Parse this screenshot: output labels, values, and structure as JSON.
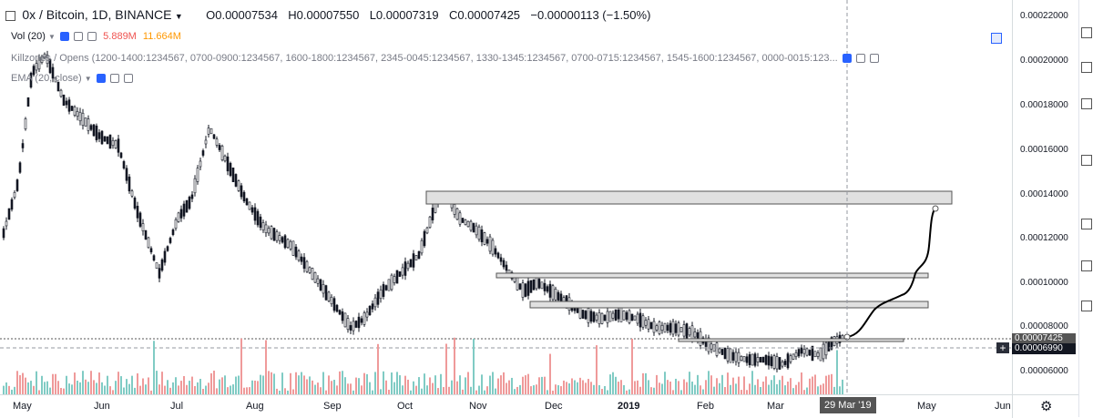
{
  "header": {
    "symbol": "0x / Bitcoin, 1D, BINANCE",
    "open": "O0.00007534",
    "high": "H0.00007550",
    "low": "L0.00007319",
    "close": "C0.00007425",
    "change": "−0.00000113 (−1.50%)"
  },
  "indicators": {
    "vol_label": "Vol (20)",
    "vol_value": "5.889M",
    "vol_ma": "11.664M",
    "killzones": "Killzones / Opens (1200-1400:1234567, 0700-0900:1234567, 1600-1800:1234567, 2345-0045:1234567, 1330-1345:1234567, 0700-0715:1234567, 1545-1600:1234567, 0000-0015:123...",
    "ema": "EMA (20, close)"
  },
  "price_scale": {
    "ticks": [
      "0.00022000",
      "0.00020000",
      "0.00018000",
      "0.00016000",
      "0.00014000",
      "0.00012000",
      "0.00010000",
      "0.00008000",
      "0.00006000"
    ],
    "current_price": "0.00007425",
    "cursor_price": "0.00006990"
  },
  "time_axis": {
    "labels": [
      "May",
      "Jun",
      "Jul",
      "Aug",
      "Sep",
      "Oct",
      "Nov",
      "Dec",
      "2019",
      "Feb",
      "Mar",
      "May",
      "Jun"
    ],
    "cursor_date": "29 Mar '19"
  },
  "colors": {
    "up": "#26a69a",
    "down": "#ef5350",
    "candles": "#131722",
    "volume_up": "#80cbc4",
    "volume_down": "#ef9a9a",
    "zone_fill": "#e0e0e0",
    "accent": "#2962ff"
  },
  "icons": [
    "gear-icon",
    "settings-icon",
    "close-icon",
    "eye-icon",
    "plus-icon",
    "collapse-icon"
  ]
}
